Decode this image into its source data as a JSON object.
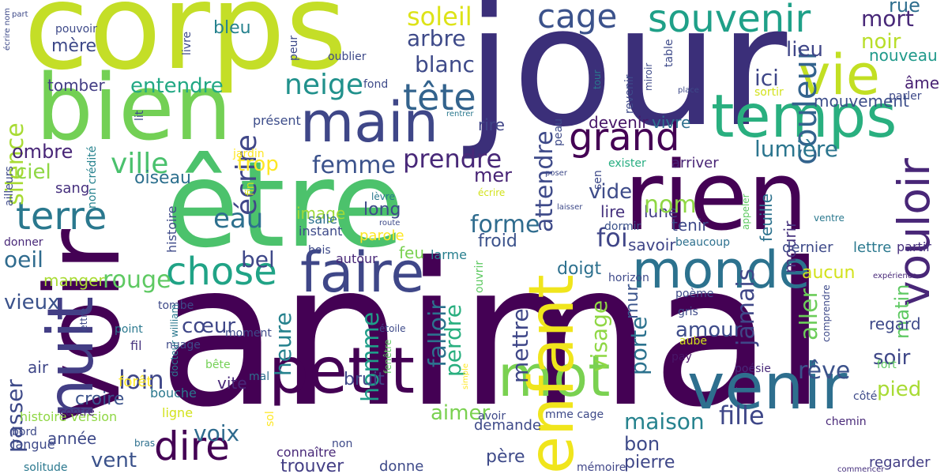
{
  "words": [
    {
      "text": "animal",
      "color": "#440154"
    },
    {
      "text": "jour",
      "color": "#3b2f79"
    },
    {
      "text": "corps",
      "color": "#c4de27"
    },
    {
      "text": "être",
      "color": "#4cc26c"
    },
    {
      "text": "rien",
      "color": "#440154"
    },
    {
      "text": "voir",
      "color": "#440154"
    },
    {
      "text": "bien",
      "color": "#73d055"
    },
    {
      "text": "venir",
      "color": "#2e6f8e"
    },
    {
      "text": "temps",
      "color": "#29af7f"
    },
    {
      "text": "petit",
      "color": "#440154"
    },
    {
      "text": "main",
      "color": "#3f4788"
    },
    {
      "text": "faire",
      "color": "#3f4788"
    },
    {
      "text": "monde",
      "color": "#2c728e"
    },
    {
      "text": "mot",
      "color": "#7ad151"
    },
    {
      "text": "vie",
      "color": "#c2df23"
    },
    {
      "text": "nuit",
      "color": "#433e85"
    },
    {
      "text": "enfant",
      "color": "#f0e51c"
    },
    {
      "text": "vouloir",
      "color": "#482677"
    },
    {
      "text": "souvenir",
      "color": "#1fa088"
    },
    {
      "text": "chose",
      "color": "#20a386"
    },
    {
      "text": "terre",
      "color": "#2a788e"
    },
    {
      "text": "grand",
      "color": "#440154"
    },
    {
      "text": "dire",
      "color": "#440154"
    },
    {
      "text": "tête",
      "color": "#33638d"
    },
    {
      "text": "cage",
      "color": "#3b528b"
    },
    {
      "text": "neige",
      "color": "#21918c"
    },
    {
      "text": "couleur",
      "color": "#33638d"
    },
    {
      "text": "soleil",
      "color": "#dde318"
    },
    {
      "text": "arbre",
      "color": "#3e4a89"
    },
    {
      "text": "blanc",
      "color": "#3e4a89"
    },
    {
      "text": "mort",
      "color": "#482878"
    },
    {
      "text": "rue",
      "color": "#2e6e8e"
    },
    {
      "text": "noir",
      "color": "#b8de29"
    },
    {
      "text": "lieu",
      "color": "#404688"
    },
    {
      "text": "nouveau",
      "color": "#1f998a"
    },
    {
      "text": "âme",
      "color": "#482173"
    },
    {
      "text": "parler",
      "color": "#3e4a89"
    },
    {
      "text": "mouvement",
      "color": "#3d4e8a"
    },
    {
      "text": "ici",
      "color": "#3f4788"
    },
    {
      "text": "lumière",
      "color": "#2b758e"
    },
    {
      "text": "écrire",
      "color": "#404788"
    },
    {
      "text": "bleu",
      "color": "#26828e"
    },
    {
      "text": "mère",
      "color": "#3e4989"
    },
    {
      "text": "entendre",
      "color": "#22a884"
    },
    {
      "text": "tomber",
      "color": "#433d84"
    },
    {
      "text": "silence",
      "color": "#a8db34"
    },
    {
      "text": "ombre",
      "color": "#482677"
    },
    {
      "text": "ciel",
      "color": "#8fd744"
    },
    {
      "text": "ville",
      "color": "#4ac16d"
    },
    {
      "text": "femme",
      "color": "#3b528b"
    },
    {
      "text": "prendre",
      "color": "#482878"
    },
    {
      "text": "attendre",
      "color": "#3e4a89"
    },
    {
      "text": "trop",
      "color": "#fde725"
    },
    {
      "text": "devenir",
      "color": "#481668"
    },
    {
      "text": "vivre",
      "color": "#2d708e"
    },
    {
      "text": "rire",
      "color": "#404588"
    },
    {
      "text": "présent",
      "color": "#3d4d8a"
    },
    {
      "text": "oiseau",
      "color": "#2d708e"
    },
    {
      "text": "sang",
      "color": "#46307e"
    },
    {
      "text": "mer",
      "color": "#482475"
    },
    {
      "text": "vide",
      "color": "#3e4c8a"
    },
    {
      "text": "lune",
      "color": "#433e85"
    },
    {
      "text": "lire",
      "color": "#46327e"
    },
    {
      "text": "arriver",
      "color": "#482475"
    },
    {
      "text": "exister",
      "color": "#26ad81"
    },
    {
      "text": "eau",
      "color": "#2d708e"
    },
    {
      "text": "image",
      "color": "#a0da39"
    },
    {
      "text": "long",
      "color": "#3e4a89"
    },
    {
      "text": "nom",
      "color": "#8fd744"
    },
    {
      "text": "forme",
      "color": "#2f6c8e"
    },
    {
      "text": "foi",
      "color": "#404688"
    },
    {
      "text": "froid",
      "color": "#3b528b"
    },
    {
      "text": "oeil",
      "color": "#2f6b8e"
    },
    {
      "text": "bel",
      "color": "#3f4889"
    },
    {
      "text": "rouge",
      "color": "#5ec962"
    },
    {
      "text": "feu",
      "color": "#7ad151"
    },
    {
      "text": "larme",
      "color": "#277f8e"
    },
    {
      "text": "savoir",
      "color": "#404688"
    },
    {
      "text": "tenir",
      "color": "#3e4989"
    },
    {
      "text": "dormir",
      "color": "#3b528b"
    },
    {
      "text": "mourir",
      "color": "#46337e"
    },
    {
      "text": "feuille",
      "color": "#2c728e"
    },
    {
      "text": "dernier",
      "color": "#3e4a89"
    },
    {
      "text": "lettre",
      "color": "#2a788e"
    },
    {
      "text": "partir",
      "color": "#46307e"
    },
    {
      "text": "beaucoup",
      "color": "#2d708e"
    },
    {
      "text": "aucun",
      "color": "#d2e21b"
    },
    {
      "text": "jamais",
      "color": "#3f4788"
    },
    {
      "text": "aller",
      "color": "#6ccd5a"
    },
    {
      "text": "mur",
      "color": "#3a548c"
    },
    {
      "text": "doigt",
      "color": "#2d708e"
    },
    {
      "text": "autour",
      "color": "#482878"
    },
    {
      "text": "parole",
      "color": "#fde725"
    },
    {
      "text": "salle",
      "color": "#2d708e"
    },
    {
      "text": "instant",
      "color": "#3e4a89"
    },
    {
      "text": "histoire",
      "color": "#3e4a89"
    },
    {
      "text": "manger",
      "color": "#a8db34"
    },
    {
      "text": "vieux",
      "color": "#3b528b"
    },
    {
      "text": "cœur",
      "color": "#3f4788"
    },
    {
      "text": "amour",
      "color": "#3e4c8a"
    },
    {
      "text": "heure",
      "color": "#26828e"
    },
    {
      "text": "homme",
      "color": "#1f9e89"
    },
    {
      "text": "falloir",
      "color": "#2c728e"
    },
    {
      "text": "perdre",
      "color": "#29af7f"
    },
    {
      "text": "mettre",
      "color": "#3f4788"
    },
    {
      "text": "visage",
      "color": "#8fd744"
    },
    {
      "text": "porte",
      "color": "#2c728e"
    },
    {
      "text": "matin",
      "color": "#5ec962"
    },
    {
      "text": "rêve",
      "color": "#3b528b"
    },
    {
      "text": "regard",
      "color": "#3e4989"
    },
    {
      "text": "loin",
      "color": "#3f4788"
    },
    {
      "text": "croire",
      "color": "#3b528b"
    },
    {
      "text": "air",
      "color": "#3f4788"
    },
    {
      "text": "vite",
      "color": "#482878"
    },
    {
      "text": "passer",
      "color": "#3e4a89"
    },
    {
      "text": "bruit",
      "color": "#3f4788"
    },
    {
      "text": "maison",
      "color": "#26828e"
    },
    {
      "text": "fille",
      "color": "#3f4788"
    },
    {
      "text": "soir",
      "color": "#3f4788"
    },
    {
      "text": "aimer",
      "color": "#7ad151"
    },
    {
      "text": "pied",
      "color": "#a8db34"
    },
    {
      "text": "voix",
      "color": "#2f6b8e"
    },
    {
      "text": "vent",
      "color": "#3b528b"
    },
    {
      "text": "père",
      "color": "#3e4a89"
    },
    {
      "text": "bon",
      "color": "#3e4a89"
    },
    {
      "text": "pierre",
      "color": "#3f4788"
    },
    {
      "text": "trouver",
      "color": "#433e85"
    },
    {
      "text": "donne",
      "color": "#3e4a89"
    },
    {
      "text": "regarder",
      "color": "#433e85"
    },
    {
      "text": "année",
      "color": "#3e4989"
    },
    {
      "text": "demande",
      "color": "#3e4a89"
    },
    {
      "text": "connaître",
      "color": "#482878"
    },
    {
      "text": "histoire version",
      "color": "#8fd744"
    },
    {
      "text": "ligne",
      "color": "#d2e21b"
    },
    {
      "text": "langue",
      "color": "#3e4a89"
    },
    {
      "text": "bouche",
      "color": "#2a788e"
    },
    {
      "text": "contre",
      "color": "#482475"
    },
    {
      "text": "bête",
      "color": "#73d055"
    },
    {
      "text": "pay",
      "color": "#481668"
    },
    {
      "text": "poésie",
      "color": "#482878"
    },
    {
      "text": "fort",
      "color": "#5ec962"
    },
    {
      "text": "côté",
      "color": "#3e4a89"
    },
    {
      "text": "chemin",
      "color": "#482878"
    },
    {
      "text": "mme cage",
      "color": "#3e4a89"
    },
    {
      "text": "avoir",
      "color": "#3e4989"
    },
    {
      "text": "non",
      "color": "#3e4a89"
    },
    {
      "text": "mémoire",
      "color": "#404688"
    },
    {
      "text": "commencer",
      "color": "#46307e"
    },
    {
      "text": "solitude",
      "color": "#2a788e"
    },
    {
      "text": "bras",
      "color": "#2d708e"
    },
    {
      "text": "sol",
      "color": "#fde725"
    },
    {
      "text": "fil",
      "color": "#46337e"
    },
    {
      "text": "point",
      "color": "#2a788e"
    },
    {
      "text": "nuage",
      "color": "#3e4a89"
    },
    {
      "text": "moment",
      "color": "#3e4a89"
    },
    {
      "text": "tombe",
      "color": "#3e4a89"
    },
    {
      "text": "forêt",
      "color": "#fde725"
    },
    {
      "text": "mal",
      "color": "#2d708e"
    },
    {
      "text": "donner",
      "color": "#482878"
    },
    {
      "text": "bord",
      "color": "#3e4a89"
    },
    {
      "text": "ailleurs",
      "color": "#3e4a89"
    },
    {
      "text": "non crédité",
      "color": "#26828e"
    },
    {
      "text": "jardin",
      "color": "#fde725"
    },
    {
      "text": "lit",
      "color": "#3e4a89"
    },
    {
      "text": "fond",
      "color": "#3e4a89"
    },
    {
      "text": "rentrer",
      "color": "#2a788e"
    },
    {
      "text": "peau",
      "color": "#3e4a89"
    },
    {
      "text": "sen",
      "color": "#3e4a89"
    },
    {
      "text": "tour",
      "color": "#2a788e"
    },
    {
      "text": "revenir",
      "color": "#3e4a89"
    },
    {
      "text": "miroir",
      "color": "#3e4a89"
    },
    {
      "text": "table",
      "color": "#3e4a89"
    },
    {
      "text": "place",
      "color": "#3e4a89"
    },
    {
      "text": "sortir",
      "color": "#d2e21b"
    },
    {
      "text": "oublier",
      "color": "#3e4a89"
    },
    {
      "text": "peur",
      "color": "#3e4a89"
    },
    {
      "text": "livre",
      "color": "#3e4a89"
    },
    {
      "text": "pouvoir",
      "color": "#3e4a89"
    },
    {
      "text": "part",
      "color": "#3e4a89"
    },
    {
      "text": "écrire nom",
      "color": "#3e4a89"
    },
    {
      "text": "poser",
      "color": "#3e4a89"
    },
    {
      "text": "laisser",
      "color": "#3e4a89"
    },
    {
      "text": "appeler",
      "color": "#5ec962"
    },
    {
      "text": "ventre",
      "color": "#2a788e"
    },
    {
      "text": "écrire",
      "color": "#d2e21b"
    },
    {
      "text": "lèvre",
      "color": "#2a788e"
    },
    {
      "text": "route",
      "color": "#3e4a89"
    },
    {
      "text": "fin",
      "color": "#d2e21b"
    },
    {
      "text": "ouvrir",
      "color": "#5ec962"
    },
    {
      "text": "horizon",
      "color": "#3e4a89"
    },
    {
      "text": "poème",
      "color": "#3e4a89"
    },
    {
      "text": "gris",
      "color": "#3e4a89"
    },
    {
      "text": "aube",
      "color": "#d2e21b"
    },
    {
      "text": "comprendre",
      "color": "#3e4a89"
    },
    {
      "text": "expérience",
      "color": "#482878"
    },
    {
      "text": "étoile",
      "color": "#3e4a89"
    },
    {
      "text": "simple",
      "color": "#fde725"
    },
    {
      "text": "fenêtre",
      "color": "#5ec962"
    },
    {
      "text": "docteur william",
      "color": "#2a788e"
    },
    {
      "text": "lettre",
      "color": "#3e4a89"
    },
    {
      "text": "bois",
      "color": "#3e4a89"
    }
  ]
}
